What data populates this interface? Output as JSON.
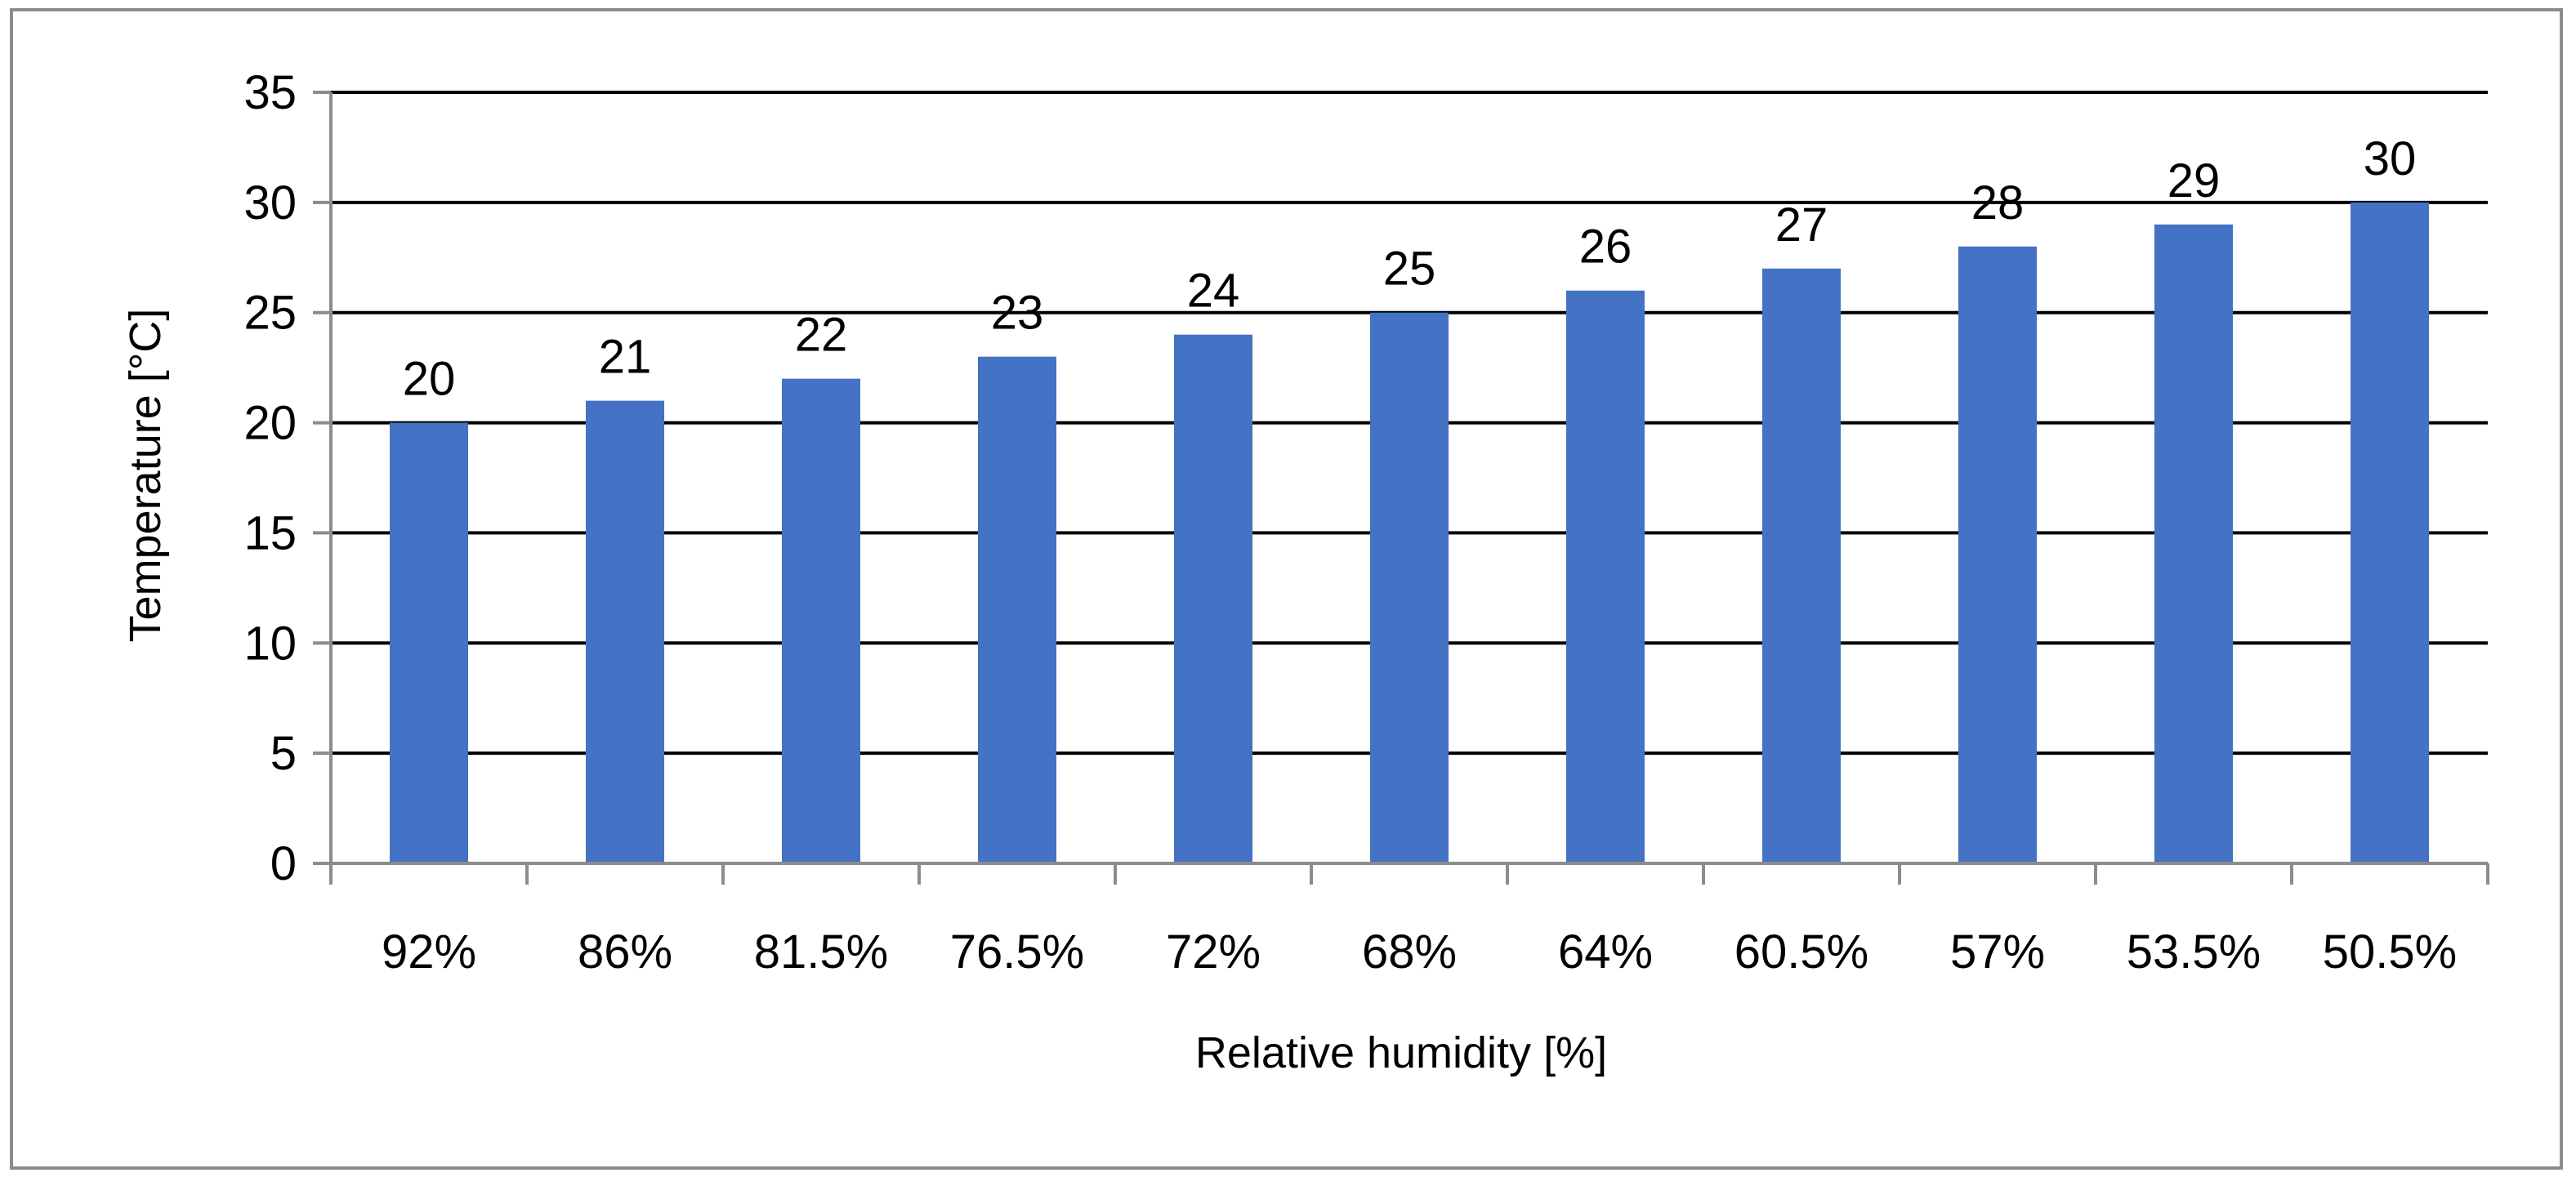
{
  "chart_data": {
    "type": "bar",
    "categories": [
      "92%",
      "86%",
      "81.5%",
      "76.5%",
      "72%",
      "68%",
      "64%",
      "60.5%",
      "57%",
      "53.5%",
      "50.5%"
    ],
    "series": [
      {
        "values": [
          20,
          21,
          22,
          23,
          24,
          25,
          26,
          27,
          28,
          29,
          30
        ],
        "color": "#4472C4"
      }
    ],
    "data_labels": [
      "20",
      "21",
      "22",
      "23",
      "24",
      "25",
      "26",
      "27",
      "28",
      "29",
      "30"
    ],
    "xlabel": "Relative humidity [%]",
    "ylabel": "Temperature [°C]",
    "ylim": [
      0,
      35
    ],
    "yticks": [
      0,
      5,
      10,
      15,
      20,
      25,
      30,
      35
    ],
    "ytick_labels": [
      "0",
      "5",
      "10",
      "15",
      "20",
      "25",
      "30",
      "35"
    ],
    "grid": true,
    "legend": "none",
    "gridline_color": "#000000",
    "axis_color": "#8c8c8c"
  }
}
